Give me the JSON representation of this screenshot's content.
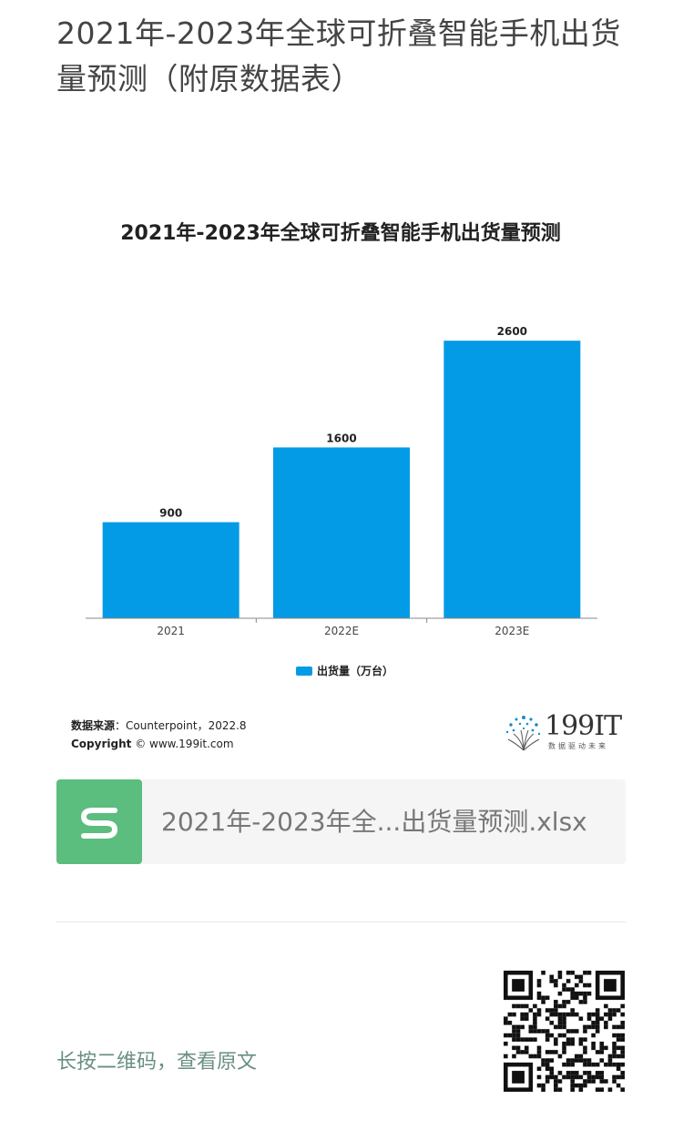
{
  "article": {
    "title": "2021年-2023年全球可折叠智能手机出货量预测（附原数据表）"
  },
  "chart_data": {
    "type": "bar",
    "title": "2021年-2023年全球可折叠智能手机出货量预测",
    "categories": [
      "2021",
      "2022E",
      "2023E"
    ],
    "series": [
      {
        "name": "出货量（万台）",
        "values": [
          900,
          1600,
          2600
        ],
        "color": "#039be5"
      }
    ],
    "data_labels": [
      "900",
      "1600",
      "2600"
    ],
    "ylim": [
      0,
      2900
    ],
    "grid": false,
    "legend_position": "bottom",
    "source_label": "数据来源",
    "source_text": "：Counterpoint，2022.8",
    "copyright_label": "Copyright",
    "copyright_text": "© www.199it.com",
    "logo_text": "199IT",
    "logo_tagline": "数据驱动未来"
  },
  "file_attachment": {
    "name": "2021年-2023年全...出货量预测.xlsx",
    "icon": "spreadsheet-s-icon",
    "icon_color": "#5bbd7e"
  },
  "footer": {
    "qr_caption": "长按二维码，查看原文",
    "qr_icon": "qr-code-icon"
  }
}
